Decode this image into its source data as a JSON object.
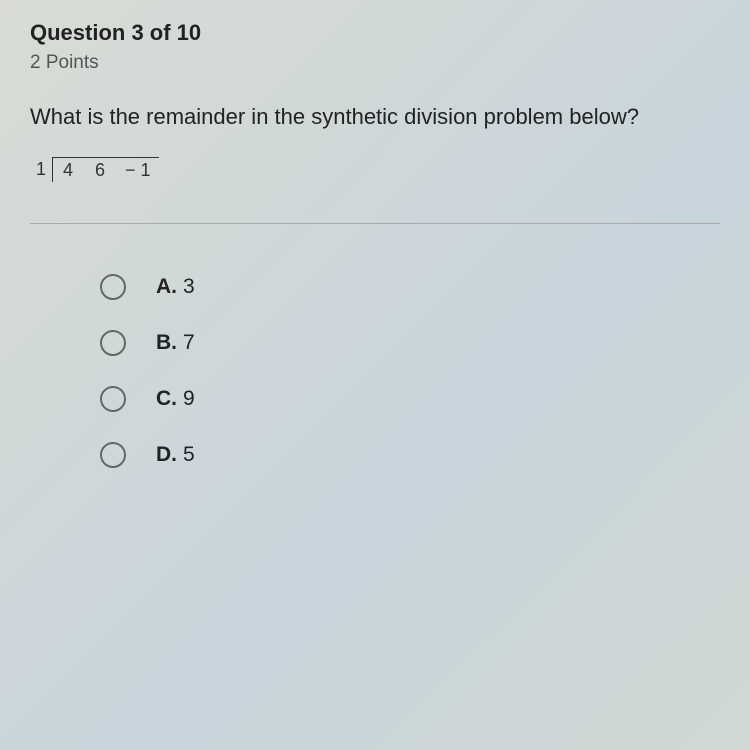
{
  "header": {
    "title": "Question 3 of 10",
    "points": "2 Points"
  },
  "question": {
    "text": "What is the remainder in the synthetic division problem below?",
    "divisor": "1",
    "coefficients": [
      "4",
      "6",
      "− 1"
    ]
  },
  "options": [
    {
      "letter": "A.",
      "value": "3"
    },
    {
      "letter": "B.",
      "value": "7"
    },
    {
      "letter": "C.",
      "value": "9"
    },
    {
      "letter": "D.",
      "value": "5"
    }
  ]
}
